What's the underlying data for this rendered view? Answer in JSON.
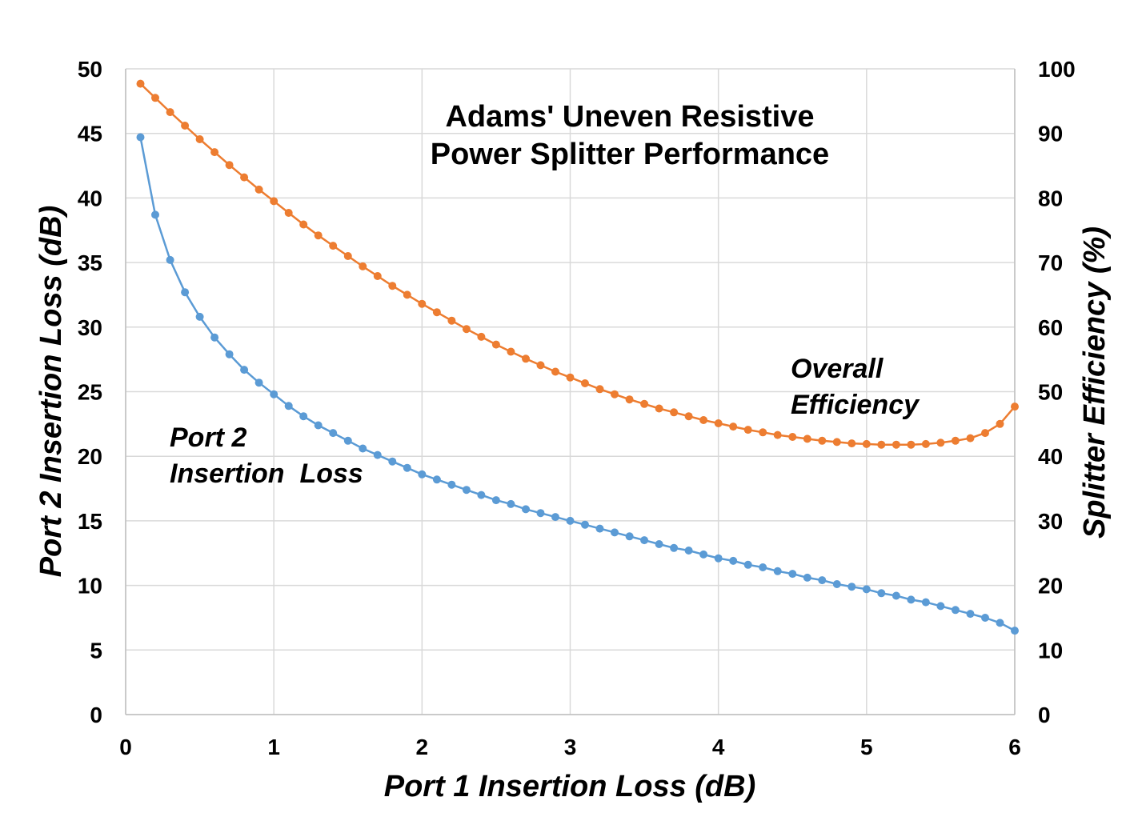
{
  "chart_data": {
    "type": "line",
    "title_lines": [
      "Adams' Uneven Resistive",
      "Power Splitter Performance"
    ],
    "xlabel": "Port 1 Insertion Loss (dB)",
    "ylabel_left": "Port 2 Insertion Loss (dB)",
    "ylabel_right": "Splitter Efficiency (%)",
    "xlim": [
      0,
      6
    ],
    "ylim_left": [
      0,
      50
    ],
    "ylim_right": [
      0,
      100
    ],
    "x_ticks": [
      "0",
      "1",
      "2",
      "3",
      "4",
      "5",
      "6"
    ],
    "y_left_ticks": [
      "0",
      "5",
      "10",
      "15",
      "20",
      "25",
      "30",
      "35",
      "40",
      "45",
      "50"
    ],
    "y_right_ticks": [
      "0",
      "10",
      "20",
      "30",
      "40",
      "50",
      "60",
      "70",
      "80",
      "90",
      "100"
    ],
    "grid": true,
    "x": [
      0.1,
      0.2,
      0.3,
      0.4,
      0.5,
      0.6,
      0.7,
      0.8,
      0.9,
      1.0,
      1.1,
      1.2,
      1.3,
      1.4,
      1.5,
      1.6,
      1.7,
      1.8,
      1.9,
      2.0,
      2.1,
      2.2,
      2.3,
      2.4,
      2.5,
      2.6,
      2.7,
      2.8,
      2.9,
      3.0,
      3.1,
      3.2,
      3.3,
      3.4,
      3.5,
      3.6,
      3.7,
      3.8,
      3.9,
      4.0,
      4.1,
      4.2,
      4.3,
      4.4,
      4.5,
      4.6,
      4.7,
      4.8,
      4.9,
      5.0,
      5.1,
      5.2,
      5.3,
      5.4,
      5.5,
      5.6,
      5.7,
      5.8,
      5.9,
      6.0
    ],
    "series": [
      {
        "name": "Port 2 Insertion Loss",
        "axis": "left",
        "color": "#5b9bd5",
        "values": [
          44.7,
          38.7,
          35.2,
          32.7,
          30.8,
          29.2,
          27.9,
          26.7,
          25.7,
          24.8,
          23.9,
          23.1,
          22.4,
          21.8,
          21.2,
          20.6,
          20.1,
          19.6,
          19.1,
          18.6,
          18.2,
          17.8,
          17.4,
          17.0,
          16.6,
          16.3,
          15.9,
          15.6,
          15.3,
          15.0,
          14.7,
          14.4,
          14.1,
          13.8,
          13.5,
          13.2,
          12.9,
          12.7,
          12.4,
          12.1,
          11.9,
          11.6,
          11.4,
          11.1,
          10.9,
          10.6,
          10.4,
          10.1,
          9.9,
          9.7,
          9.4,
          9.2,
          8.9,
          8.7,
          8.4,
          8.1,
          7.8,
          7.5,
          7.1,
          6.5
        ]
      },
      {
        "name": "Overall Efficiency",
        "axis": "right",
        "color": "#ed7d31",
        "values": [
          97.7,
          95.5,
          93.3,
          91.2,
          89.1,
          87.1,
          85.1,
          83.2,
          81.3,
          79.5,
          77.7,
          75.9,
          74.2,
          72.6,
          71.0,
          69.4,
          67.9,
          66.4,
          65.0,
          63.6,
          62.3,
          61.0,
          59.7,
          58.5,
          57.3,
          56.2,
          55.1,
          54.1,
          53.1,
          52.2,
          51.3,
          50.4,
          49.6,
          48.8,
          48.1,
          47.4,
          46.8,
          46.2,
          45.6,
          45.1,
          44.6,
          44.1,
          43.7,
          43.3,
          43.0,
          42.7,
          42.4,
          42.2,
          42.0,
          41.9,
          41.8,
          41.8,
          41.8,
          41.9,
          42.1,
          42.4,
          42.8,
          43.6,
          45.0,
          47.7
        ]
      }
    ],
    "annotations": {
      "blue_lines": [
        "Port 2",
        "Insertion  Loss"
      ],
      "orange_lines": [
        "Overall",
        "Efficiency"
      ]
    }
  }
}
